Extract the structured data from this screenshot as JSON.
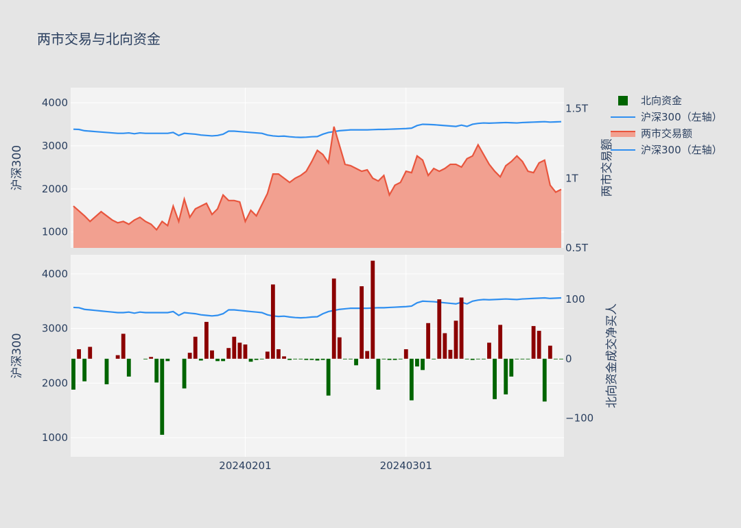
{
  "title": "两市交易与北向资金",
  "colors": {
    "background": "#e5e5e5",
    "plot_bg": "#f3f3f3",
    "grid": "#ffffff",
    "csi_line": "#2f8ff0",
    "turnover_line": "#e8553d",
    "turnover_fill": "#f2a090",
    "bar_positive": "#8b0000",
    "bar_negative": "#006400",
    "text": "#2a3f5f"
  },
  "legend": [
    {
      "label": "北向资金",
      "kind": "bar",
      "color": "#006400"
    },
    {
      "label": "沪深300（左轴）",
      "kind": "line",
      "color": "#2f8ff0"
    },
    {
      "label": "两市交易额",
      "kind": "area",
      "color": "#e8553d"
    },
    {
      "label": "沪深300（左轴）",
      "kind": "line",
      "color": "#2f8ff0"
    }
  ],
  "chart_data": [
    {
      "type": "line",
      "panel": "top",
      "yaxis_left": {
        "label": "沪深300",
        "range": [
          630,
          4350
        ],
        "ticks": [
          1000,
          2000,
          3000,
          4000
        ],
        "tick_labels": [
          "1000",
          "2000",
          "3000",
          "4000"
        ]
      },
      "yaxis_right": {
        "label": "两市交易额",
        "range": [
          0.5,
          1.65
        ],
        "ticks": [
          0.5,
          1.0,
          1.5
        ],
        "tick_labels": [
          "0.5T",
          "1T",
          "1.5T"
        ]
      },
      "x_ticks": [
        {
          "x": 31,
          "label": "20240201"
        },
        {
          "x": 60,
          "label": "20240301"
        }
      ],
      "series": [
        {
          "name": "沪深300（左轴）",
          "axis": "left",
          "x": [
            0,
            1,
            2,
            3,
            4,
            5,
            6,
            7,
            8,
            9,
            10,
            11,
            12,
            13,
            14,
            15,
            16,
            17,
            18,
            19,
            20,
            21,
            22,
            23,
            24,
            25,
            26,
            27,
            28,
            29,
            30,
            31,
            32,
            33,
            34,
            35,
            36,
            37,
            38,
            39,
            40,
            41,
            42,
            43,
            44,
            45,
            46,
            47,
            48,
            49,
            50,
            51,
            52,
            53,
            54,
            55,
            56,
            57,
            58,
            59,
            60,
            61,
            62,
            63,
            64,
            65,
            66,
            67,
            68,
            69,
            70,
            71,
            72,
            73,
            74,
            75,
            76,
            77,
            78,
            79,
            80,
            81,
            82,
            83,
            84,
            85,
            86,
            87,
            88
          ],
          "values": [
            3385,
            3380,
            3350,
            3340,
            3330,
            3320,
            3310,
            3300,
            3290,
            3290,
            3300,
            3280,
            3300,
            3290,
            3290,
            3290,
            3290,
            3290,
            3310,
            3240,
            3290,
            3280,
            3270,
            3250,
            3240,
            3230,
            3240,
            3270,
            3340,
            3340,
            3330,
            3320,
            3310,
            3300,
            3290,
            3250,
            3230,
            3220,
            3225,
            3210,
            3200,
            3195,
            3200,
            3210,
            3215,
            3270,
            3310,
            3330,
            3350,
            3360,
            3370,
            3370,
            3370,
            3370,
            3375,
            3380,
            3380,
            3385,
            3390,
            3395,
            3400,
            3410,
            3470,
            3500,
            3495,
            3490,
            3480,
            3470,
            3460,
            3450,
            3480,
            3450,
            3500,
            3520,
            3530,
            3525,
            3530,
            3535,
            3540,
            3535,
            3530,
            3540,
            3545,
            3550,
            3555,
            3560,
            3550,
            3555,
            3560
          ],
          "color": "#2f8ff0"
        },
        {
          "name": "两市交易额",
          "axis": "right",
          "x": [
            0,
            2,
            3,
            5,
            7,
            8,
            9,
            10,
            11,
            12,
            13,
            14,
            15,
            16,
            17,
            18,
            19,
            20,
            21,
            22,
            24,
            25,
            26,
            27,
            28,
            29,
            30,
            31,
            32,
            33,
            34,
            35,
            36,
            37,
            38,
            39,
            40,
            41,
            42,
            43,
            44,
            45,
            46,
            47,
            49,
            50,
            51,
            52,
            53,
            54,
            55,
            56,
            57,
            58,
            59,
            60,
            61,
            62,
            63,
            64,
            65,
            66,
            67,
            68,
            69,
            70,
            71,
            72,
            73,
            75,
            76,
            77,
            78,
            79,
            80,
            81,
            82,
            83,
            84,
            85,
            86,
            87,
            88
          ],
          "values": [
            0.8,
            0.73,
            0.69,
            0.76,
            0.7,
            0.68,
            0.69,
            0.67,
            0.7,
            0.72,
            0.69,
            0.67,
            0.63,
            0.69,
            0.66,
            0.8,
            0.69,
            0.85,
            0.72,
            0.78,
            0.82,
            0.74,
            0.78,
            0.88,
            0.84,
            0.84,
            0.83,
            0.69,
            0.77,
            0.73,
            0.81,
            0.89,
            1.03,
            1.03,
            1.0,
            0.97,
            1.0,
            1.02,
            1.05,
            1.12,
            1.2,
            1.17,
            1.11,
            1.37,
            1.1,
            1.09,
            1.07,
            1.05,
            1.06,
            1.0,
            0.98,
            1.02,
            0.88,
            0.95,
            0.97,
            1.05,
            1.04,
            1.16,
            1.13,
            1.02,
            1.07,
            1.05,
            1.07,
            1.1,
            1.1,
            1.08,
            1.14,
            1.16,
            1.24,
            1.1,
            1.05,
            1.01,
            1.09,
            1.12,
            1.16,
            1.12,
            1.05,
            1.04,
            1.11,
            1.13,
            0.95,
            0.9,
            0.92
          ],
          "fill": "tozeroy",
          "color": "#e8553d"
        }
      ]
    },
    {
      "type": "bar",
      "panel": "bottom",
      "yaxis_left": {
        "label": "沪深300",
        "range": [
          650,
          4350
        ],
        "ticks": [
          1000,
          2000,
          3000,
          4000
        ],
        "tick_labels": [
          "1000",
          "2000",
          "3000",
          "4000"
        ]
      },
      "yaxis_right": {
        "label": "北向资金成交净买人",
        "range": [
          -165,
          175
        ],
        "ticks": [
          -100,
          0,
          100
        ],
        "tick_labels": [
          "−100",
          "0",
          "100"
        ]
      },
      "x_ticks": [
        {
          "x": 31,
          "label": "20240201"
        },
        {
          "x": 60,
          "label": "20240301"
        }
      ],
      "series": [
        {
          "name": "沪深300（左轴）",
          "axis": "left",
          "x": [
            0,
            1,
            2,
            3,
            4,
            5,
            6,
            7,
            8,
            9,
            10,
            11,
            12,
            13,
            14,
            15,
            16,
            17,
            18,
            19,
            20,
            21,
            22,
            23,
            24,
            25,
            26,
            27,
            28,
            29,
            30,
            31,
            32,
            33,
            34,
            35,
            36,
            37,
            38,
            39,
            40,
            41,
            42,
            43,
            44,
            45,
            46,
            47,
            48,
            49,
            50,
            51,
            52,
            53,
            54,
            55,
            56,
            57,
            58,
            59,
            60,
            61,
            62,
            63,
            64,
            65,
            66,
            67,
            68,
            69,
            70,
            71,
            72,
            73,
            74,
            75,
            76,
            77,
            78,
            79,
            80,
            81,
            82,
            83,
            84,
            85,
            86,
            87,
            88
          ],
          "values": [
            3385,
            3380,
            3350,
            3340,
            3330,
            3320,
            3310,
            3300,
            3290,
            3290,
            3300,
            3280,
            3300,
            3290,
            3290,
            3290,
            3290,
            3290,
            3310,
            3240,
            3290,
            3280,
            3270,
            3250,
            3240,
            3230,
            3240,
            3270,
            3340,
            3340,
            3330,
            3320,
            3310,
            3300,
            3290,
            3250,
            3230,
            3220,
            3225,
            3210,
            3200,
            3195,
            3200,
            3210,
            3215,
            3270,
            3310,
            3330,
            3350,
            3360,
            3370,
            3370,
            3370,
            3370,
            3375,
            3380,
            3380,
            3385,
            3390,
            3395,
            3400,
            3410,
            3470,
            3500,
            3495,
            3490,
            3480,
            3470,
            3460,
            3450,
            3480,
            3450,
            3500,
            3520,
            3530,
            3525,
            3530,
            3535,
            3540,
            3535,
            3530,
            3540,
            3545,
            3550,
            3555,
            3560,
            3550,
            3555,
            3560
          ],
          "color": "#2f8ff0"
        },
        {
          "name": "北向资金",
          "axis": "right",
          "x": [
            0,
            1,
            2,
            3,
            6,
            8,
            9,
            10,
            13,
            14,
            15,
            16,
            17,
            20,
            21,
            22,
            23,
            24,
            25,
            26,
            27,
            28,
            29,
            30,
            31,
            32,
            33,
            34,
            35,
            36,
            37,
            38,
            39,
            40,
            41,
            42,
            43,
            44,
            45,
            46,
            47,
            48,
            49,
            50,
            51,
            52,
            53,
            54,
            55,
            56,
            57,
            58,
            59,
            60,
            61,
            62,
            63,
            64,
            65,
            66,
            67,
            68,
            69,
            70,
            71,
            72,
            73,
            74,
            75,
            76,
            77,
            78,
            79,
            80,
            81,
            82,
            83,
            84,
            85,
            86,
            87,
            88
          ],
          "values": [
            -52,
            16,
            -38,
            20,
            -43,
            6,
            42,
            -30,
            -1,
            3,
            -40,
            -128,
            -4,
            -50,
            10,
            37,
            -3,
            62,
            14,
            -4,
            -4,
            18,
            37,
            27,
            24,
            -5,
            -2,
            -1,
            12,
            125,
            16,
            4,
            -2,
            -1,
            -1,
            -2,
            -2,
            -3,
            -2,
            -62,
            135,
            36,
            -1,
            -1,
            -11,
            122,
            13,
            165,
            -52,
            -1,
            -2,
            -2,
            -1,
            16,
            -70,
            -13,
            -19,
            60,
            -1,
            100,
            43,
            15,
            64,
            103,
            -1,
            -2,
            -1,
            -1,
            27,
            -68,
            57,
            -60,
            -30,
            -1,
            -1,
            -1,
            55,
            47,
            -72,
            22,
            -1,
            -1
          ],
          "colors_by_sign": {
            "positive": "#8b0000",
            "negative": "#006400"
          }
        }
      ]
    }
  ]
}
